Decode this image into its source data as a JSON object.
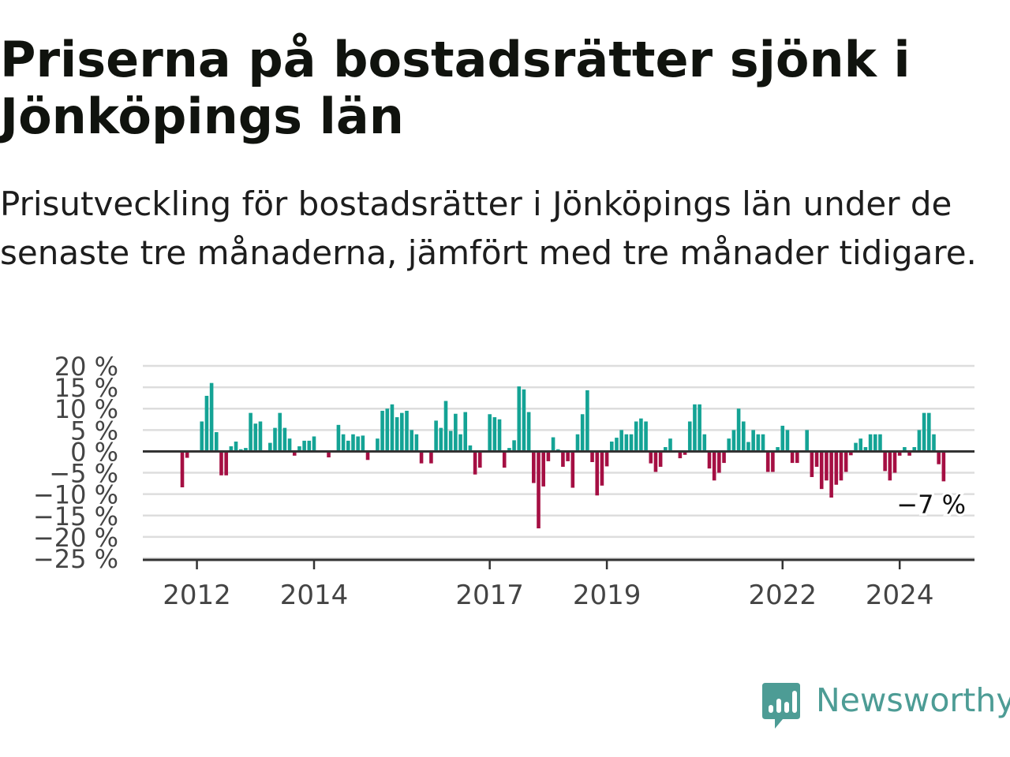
{
  "title": "Priserna på bostadsrätter sjönk i Jönköpings län",
  "subtitle": "Prisutveckling för bostadsrätter i Jönköpings län under de senaste tre månaderna, jämfört med tre månader tidigare.",
  "brand": {
    "name": "Newsworthy",
    "color": "#4d9c95",
    "icon": "newsworthy-logo-icon"
  },
  "chart_data": {
    "type": "bar",
    "y_tick_labels": [
      "20 %",
      "15 %",
      "10 %",
      "5 %",
      "0 %",
      "−5 %",
      "−10 %",
      "−15 %",
      "−20 %",
      "−25 %"
    ],
    "y_ticks": [
      20,
      15,
      10,
      5,
      0,
      -5,
      -10,
      -15,
      -20,
      -25
    ],
    "ylim": [
      -25,
      20
    ],
    "x_tick_labels": [
      "2012",
      "2014",
      "2017",
      "2019",
      "2022",
      "2024"
    ],
    "x_ticks": [
      "2012-01",
      "2014-01",
      "2017-01",
      "2019-01",
      "2022-01",
      "2024-01"
    ],
    "x_start": "2011-10",
    "grid": true,
    "colors": {
      "positive": "#14a395",
      "negative": "#a50f43",
      "gridline": "#dddddd",
      "zeroline": "#333333"
    },
    "last_label": "−7 %",
    "values": [
      -8.4,
      -1.5,
      0,
      0,
      7,
      13,
      16,
      4.5,
      -5.6,
      -5.6,
      1.2,
      2.3,
      0.5,
      0.8,
      9,
      6.5,
      7,
      0,
      2,
      5.5,
      9,
      5.5,
      3,
      -1,
      1.2,
      2.5,
      2.5,
      3.5,
      0,
      0,
      -1.4,
      0,
      6.2,
      4,
      2.5,
      4,
      3.5,
      3.7,
      -2,
      0,
      3,
      9.5,
      10,
      11,
      8,
      9,
      9.5,
      5,
      4,
      -2.8,
      0,
      -2.8,
      7.2,
      5.5,
      11.8,
      4.8,
      8.8,
      4,
      9.2,
      1.4,
      -5.4,
      -3.8,
      0,
      8.7,
      8,
      7.5,
      -3.8,
      0.8,
      2.6,
      15.2,
      14.5,
      9.2,
      -7.4,
      -18,
      -8.2,
      -2.3,
      3.3,
      0.5,
      -3.6,
      -2.3,
      -8.5,
      4,
      8.7,
      14.3,
      -2.5,
      -10.3,
      -8,
      -3.5,
      2.3,
      3.2,
      5,
      4,
      4,
      7,
      7.7,
      7,
      -2.8,
      -4.8,
      -3.6,
      1,
      3,
      0,
      -1.6,
      -0.8,
      7,
      11,
      11,
      4,
      -4,
      -6.8,
      -5,
      -2.7,
      3,
      5,
      10,
      7,
      2.2,
      5,
      4,
      4,
      -4.8,
      -4.8,
      1,
      6,
      5,
      -2.7,
      -2.7,
      0,
      5,
      -6,
      -3.6,
      -8.8,
      -6.8,
      -10.8,
      -7.8,
      -6.8,
      -4.8,
      -0.9,
      2,
      3,
      1,
      4,
      4,
      4,
      -4.6,
      -6.8,
      -5,
      -1,
      1,
      -1,
      1,
      5,
      9,
      9,
      4,
      -3,
      -7
    ]
  }
}
